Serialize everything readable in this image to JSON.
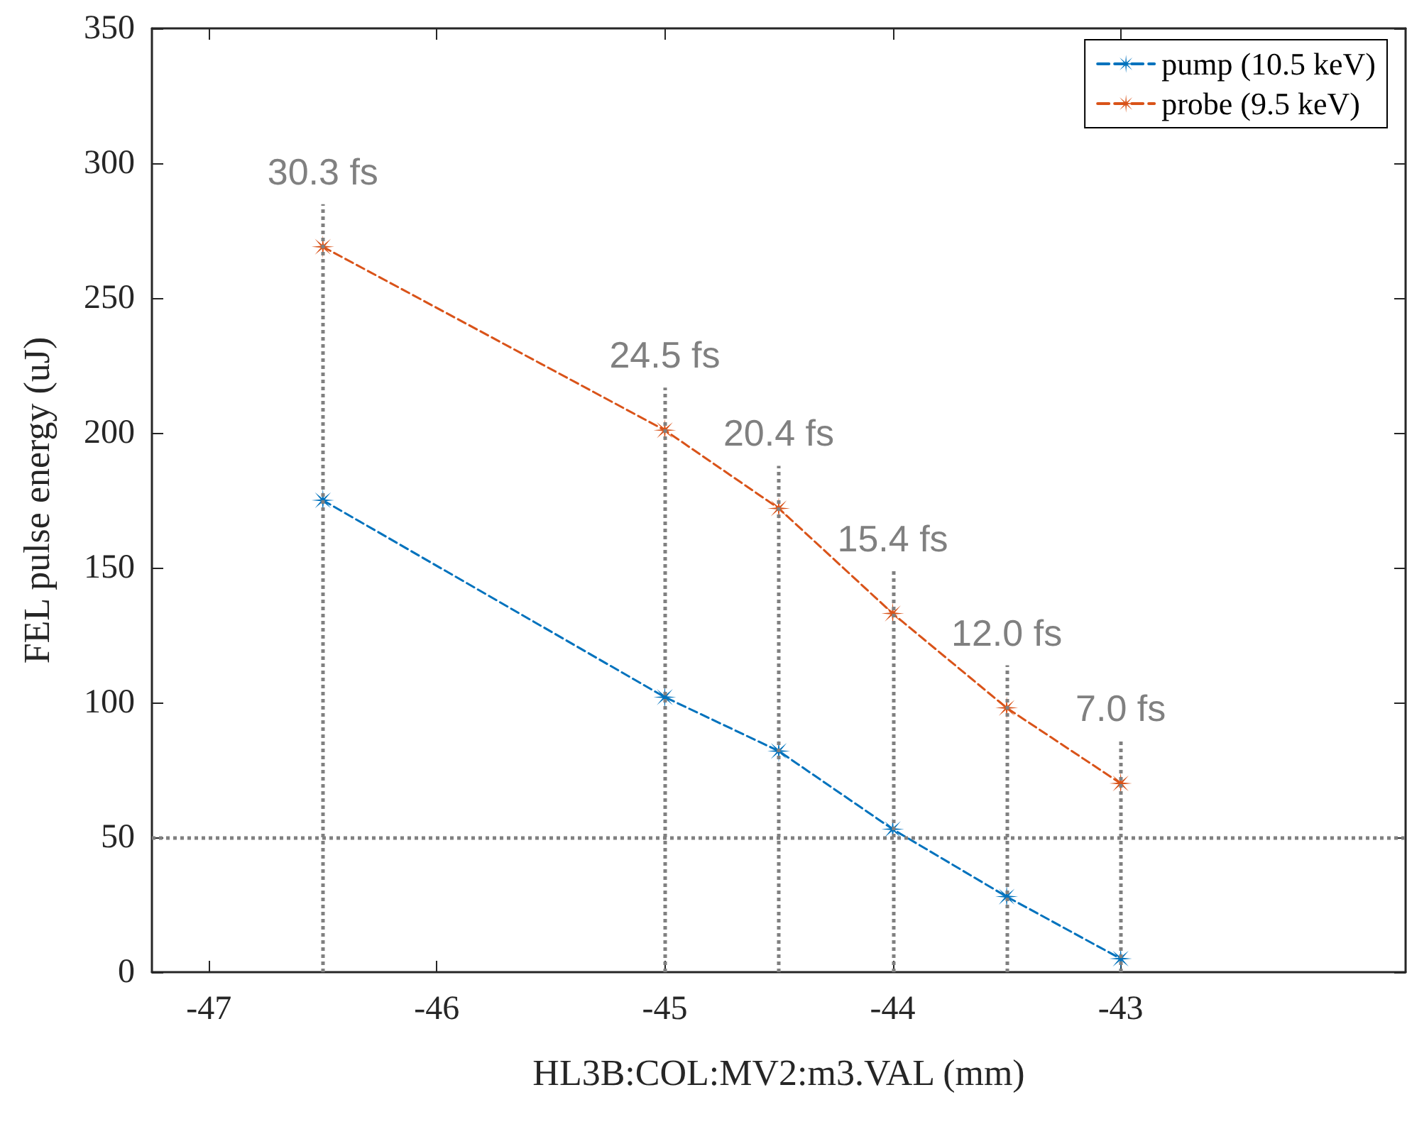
{
  "chart_data": {
    "type": "line",
    "xlabel": "HL3B:COL:MV2:m3.VAL (mm)",
    "ylabel": "FEL pulse energy (uJ)",
    "x": [
      -46.5,
      -45,
      -44.5,
      -44,
      -43.5,
      -43
    ],
    "series": [
      {
        "name": "pump (10.5 keV)",
        "color": "#0072bd",
        "values": [
          175,
          102,
          82,
          53,
          28,
          5
        ]
      },
      {
        "name": "probe (9.5 keV)",
        "color": "#d95319",
        "values": [
          269,
          201,
          172,
          133,
          98,
          70
        ]
      }
    ],
    "xlim": [
      -47.25,
      -41.75
    ],
    "xticks": [
      -47,
      -46,
      -45,
      -44,
      -43
    ],
    "ylim": [
      0,
      350
    ],
    "yticks": [
      0,
      50,
      100,
      150,
      200,
      250,
      300,
      350
    ],
    "ref_lines": [
      {
        "axis": "y",
        "value": 50,
        "color": "#808080",
        "line_style": "dotted"
      },
      {
        "axis": "x",
        "value": -46.5,
        "label": "30.3 fs",
        "color": "#808080",
        "line_style": "dotted"
      },
      {
        "axis": "x",
        "value": -45,
        "label": "24.5 fs",
        "color": "#808080",
        "line_style": "dotted"
      },
      {
        "axis": "x",
        "value": -44.5,
        "label": "20.4 fs",
        "color": "#808080",
        "line_style": "dotted"
      },
      {
        "axis": "x",
        "value": -44,
        "label": "15.4 fs",
        "color": "#808080",
        "line_style": "dotted"
      },
      {
        "axis": "x",
        "value": -43.5,
        "label": "12.0 fs",
        "color": "#808080",
        "line_style": "dotted"
      },
      {
        "axis": "x",
        "value": -43,
        "label": "7.0 fs",
        "color": "#808080",
        "line_style": "dotted"
      }
    ],
    "grid": false,
    "legend": "top right",
    "marker": "star",
    "line_style": "dashed"
  }
}
